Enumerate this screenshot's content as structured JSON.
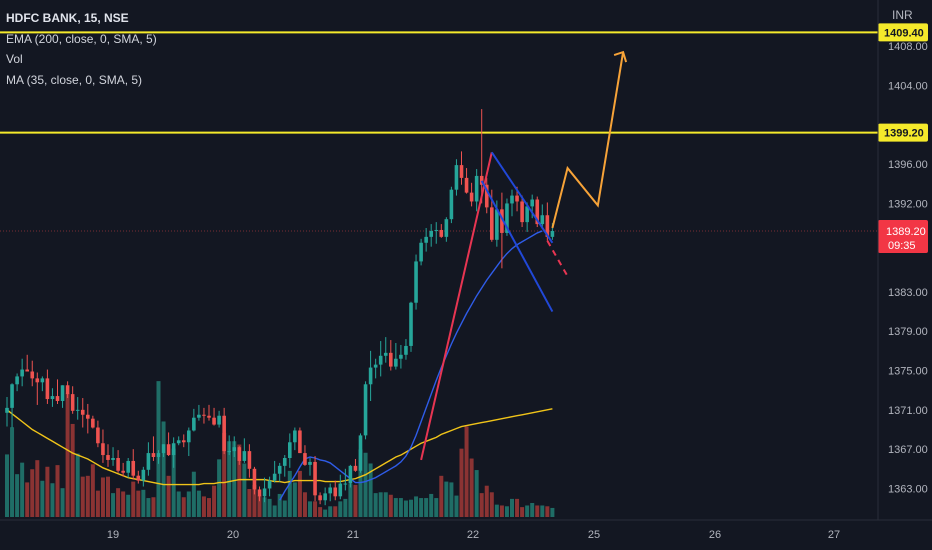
{
  "legend": {
    "title": "HDFC BANK, 15, NSE",
    "ema": "EMA (200, close, 0, SMA, 5)",
    "vol": "Vol",
    "ma": "MA (35, close, 0, SMA, 5)"
  },
  "currency": "INR",
  "price_box": {
    "price": "1389.20",
    "countdown": "09:35"
  },
  "colors": {
    "background": "#131722",
    "up": "#26a69a",
    "down": "#ef5350",
    "volume_up": "#1f6d66",
    "volume_down": "#8b3333",
    "ema": "#f0c419",
    "ma": "#2f5ce8",
    "level_line": "#f5ea2b",
    "projection": "#f7a338",
    "channel": "#2148d8",
    "flag_pole": "#e83552",
    "axis_text": "#b2b5be"
  },
  "chart_data": {
    "type": "candlestick",
    "symbol": "HDFC BANK",
    "interval": "15",
    "exchange": "NSE",
    "y_axis": {
      "ticks": [
        1363.0,
        1367.0,
        1371.0,
        1375.0,
        1379.0,
        1383.0,
        1392.0,
        1396.0,
        1404.0,
        1408.0
      ],
      "range": [
        1360.3,
        1412.7
      ]
    },
    "x_axis": {
      "ticks": [
        "19",
        "20",
        "21",
        "22",
        "25",
        "26",
        "27"
      ]
    },
    "horizontal_levels": [
      {
        "price": 1409.4,
        "label": "1409.40"
      },
      {
        "price": 1399.2,
        "label": "1399.20"
      }
    ],
    "last_price": 1389.2,
    "candles": [
      [
        1370.7,
        1372.3,
        1369.3,
        1371.2
      ],
      [
        1371.2,
        1373.7,
        1369.2,
        1373.6
      ],
      [
        1373.6,
        1374.7,
        1372.9,
        1374.4
      ],
      [
        1374.4,
        1376.2,
        1373.4,
        1375.1
      ],
      [
        1375.1,
        1376.6,
        1374.9,
        1374.9
      ],
      [
        1374.9,
        1376.0,
        1373.4,
        1374.2
      ],
      [
        1374.2,
        1374.8,
        1371.5,
        1373.8
      ],
      [
        1373.8,
        1374.4,
        1372.9,
        1374.2
      ],
      [
        1374.2,
        1375.1,
        1371.6,
        1372.1
      ],
      [
        1372.1,
        1373.2,
        1371.3,
        1372.4
      ],
      [
        1372.4,
        1374.1,
        1371.6,
        1371.9
      ],
      [
        1371.9,
        1373.5,
        1371.2,
        1373.5
      ],
      [
        1373.5,
        1373.9,
        1372.2,
        1372.6
      ],
      [
        1372.6,
        1373.4,
        1370.6,
        1370.9
      ],
      [
        1370.9,
        1372.3,
        1370.0,
        1371.0
      ],
      [
        1371.0,
        1372.2,
        1369.2,
        1370.5
      ],
      [
        1370.5,
        1371.6,
        1368.6,
        1370.1
      ],
      [
        1370.1,
        1370.4,
        1369.1,
        1369.2
      ],
      [
        1369.2,
        1369.9,
        1367.2,
        1367.6
      ],
      [
        1367.6,
        1369.0,
        1365.6,
        1366.4
      ],
      [
        1366.4,
        1367.5,
        1365.2,
        1365.9
      ],
      [
        1365.9,
        1367.2,
        1365.3,
        1366.1
      ],
      [
        1366.1,
        1366.9,
        1364.6,
        1364.8
      ],
      [
        1364.8,
        1365.6,
        1364.2,
        1364.6
      ],
      [
        1364.6,
        1366.1,
        1364.1,
        1365.8
      ],
      [
        1365.8,
        1367.0,
        1363.9,
        1364.3
      ],
      [
        1364.3,
        1364.8,
        1363.5,
        1363.8
      ],
      [
        1363.8,
        1365.2,
        1363.2,
        1364.9
      ],
      [
        1364.9,
        1367.7,
        1364.3,
        1366.6
      ],
      [
        1366.6,
        1368.3,
        1365.8,
        1366.2
      ],
      [
        1366.2,
        1366.9,
        1365.5,
        1366.6
      ],
      [
        1366.6,
        1367.5,
        1366.2,
        1367.5
      ],
      [
        1367.5,
        1368.7,
        1366.3,
        1366.4
      ],
      [
        1366.4,
        1368.2,
        1365.1,
        1367.6
      ],
      [
        1367.6,
        1368.3,
        1367.4,
        1367.9
      ],
      [
        1367.9,
        1368.5,
        1367.2,
        1367.7
      ],
      [
        1367.7,
        1369.2,
        1366.3,
        1368.9
      ],
      [
        1368.9,
        1371.1,
        1368.8,
        1370.2
      ],
      [
        1370.2,
        1371.5,
        1369.9,
        1370.5
      ],
      [
        1370.5,
        1371.2,
        1369.6,
        1370.4
      ],
      [
        1370.4,
        1371.5,
        1369.9,
        1370.2
      ],
      [
        1370.2,
        1371.2,
        1369.4,
        1369.5
      ],
      [
        1369.5,
        1370.9,
        1369.2,
        1370.4
      ],
      [
        1370.4,
        1371.2,
        1366.5,
        1366.8
      ],
      [
        1366.8,
        1368.4,
        1366.4,
        1366.8
      ],
      [
        1366.8,
        1368.3,
        1366.2,
        1367.2
      ],
      [
        1367.2,
        1367.3,
        1365.4,
        1365.8
      ],
      [
        1365.8,
        1368.1,
        1365.6,
        1366.8
      ],
      [
        1366.8,
        1367.5,
        1364.1,
        1365.0
      ],
      [
        1365.0,
        1365.2,
        1362.4,
        1362.9
      ],
      [
        1362.9,
        1363.2,
        1361.7,
        1362.2
      ],
      [
        1362.2,
        1364.1,
        1361.6,
        1363.0
      ],
      [
        1363.0,
        1364.2,
        1362.2,
        1363.8
      ],
      [
        1363.8,
        1365.8,
        1363.6,
        1364.5
      ],
      [
        1364.5,
        1365.6,
        1363.7,
        1365.3
      ],
      [
        1365.3,
        1366.4,
        1364.2,
        1366.1
      ],
      [
        1366.1,
        1368.6,
        1365.1,
        1367.7
      ],
      [
        1367.7,
        1369.2,
        1366.9,
        1368.9
      ],
      [
        1368.9,
        1369.2,
        1366.6,
        1366.6
      ],
      [
        1366.6,
        1367.4,
        1365.3,
        1365.4
      ],
      [
        1365.4,
        1366.1,
        1364.3,
        1365.7
      ],
      [
        1365.7,
        1366.3,
        1361.7,
        1362.3
      ],
      [
        1362.3,
        1362.6,
        1361.4,
        1361.8
      ],
      [
        1361.8,
        1363.1,
        1361.3,
        1362.5
      ],
      [
        1362.5,
        1363.5,
        1361.7,
        1363.1
      ],
      [
        1363.1,
        1363.8,
        1361.8,
        1362.2
      ],
      [
        1362.2,
        1364.4,
        1361.9,
        1363.5
      ],
      [
        1363.5,
        1365.0,
        1362.8,
        1363.5
      ],
      [
        1363.5,
        1365.4,
        1363.1,
        1365.3
      ],
      [
        1365.3,
        1366.0,
        1364.7,
        1364.8
      ],
      [
        1364.8,
        1368.6,
        1364.6,
        1368.4
      ],
      [
        1368.4,
        1373.9,
        1368.0,
        1373.6
      ],
      [
        1373.6,
        1377.0,
        1371.9,
        1375.3
      ],
      [
        1375.3,
        1376.2,
        1374.2,
        1375.6
      ],
      [
        1375.6,
        1378.0,
        1374.4,
        1376.5
      ],
      [
        1376.5,
        1378.4,
        1375.8,
        1376.8
      ],
      [
        1376.8,
        1378.1,
        1375.0,
        1375.4
      ],
      [
        1375.4,
        1377.8,
        1375.1,
        1376.2
      ],
      [
        1376.2,
        1377.6,
        1375.2,
        1376.6
      ],
      [
        1376.6,
        1378.2,
        1376.1,
        1377.5
      ],
      [
        1377.5,
        1382.0,
        1376.9,
        1381.9
      ],
      [
        1381.9,
        1386.8,
        1381.2,
        1386.1
      ],
      [
        1386.1,
        1388.4,
        1385.7,
        1388.0
      ],
      [
        1388.0,
        1389.5,
        1387.1,
        1388.6
      ],
      [
        1388.6,
        1389.9,
        1387.6,
        1389.2
      ],
      [
        1389.2,
        1390.1,
        1387.9,
        1389.3
      ],
      [
        1389.3,
        1389.9,
        1388.5,
        1388.6
      ],
      [
        1388.6,
        1390.6,
        1388.1,
        1390.4
      ],
      [
        1390.4,
        1393.7,
        1390.0,
        1393.4
      ],
      [
        1393.4,
        1396.5,
        1392.8,
        1395.9
      ],
      [
        1395.9,
        1397.3,
        1393.9,
        1394.6
      ],
      [
        1394.6,
        1395.6,
        1393.0,
        1393.1
      ],
      [
        1393.1,
        1394.1,
        1391.7,
        1392.2
      ],
      [
        1392.2,
        1395.5,
        1391.2,
        1394.8
      ],
      [
        1394.8,
        1401.6,
        1392.0,
        1393.9
      ],
      [
        1393.9,
        1394.6,
        1391.0,
        1391.6
      ],
      [
        1391.6,
        1393.4,
        1388.1,
        1388.3
      ],
      [
        1388.3,
        1392.3,
        1387.6,
        1391.4
      ],
      [
        1391.4,
        1393.1,
        1385.4,
        1389.0
      ],
      [
        1389.0,
        1392.5,
        1388.7,
        1392.0
      ],
      [
        1392.0,
        1393.4,
        1390.7,
        1392.8
      ],
      [
        1392.8,
        1393.7,
        1391.2,
        1392.2
      ],
      [
        1392.2,
        1392.8,
        1389.6,
        1390.1
      ],
      [
        1390.1,
        1392.1,
        1389.1,
        1391.7
      ],
      [
        1391.7,
        1392.9,
        1390.5,
        1392.4
      ],
      [
        1392.4,
        1392.7,
        1389.6,
        1389.9
      ],
      [
        1389.9,
        1391.9,
        1389.4,
        1390.8
      ],
      [
        1390.8,
        1392.1,
        1388.2,
        1388.6
      ],
      [
        1388.6,
        1390.0,
        1388.3,
        1389.2
      ]
    ],
    "volume": [
      760,
      1090,
      520,
      660,
      420,
      580,
      690,
      440,
      610,
      410,
      630,
      350,
      1500,
      1130,
      770,
      490,
      500,
      640,
      320,
      480,
      490,
      290,
      350,
      310,
      270,
      430,
      320,
      330,
      230,
      240,
      1650,
      1160,
      500,
      830,
      310,
      240,
      310,
      550,
      320,
      250,
      230,
      380,
      700,
      1020,
      920,
      920,
      880,
      650,
      340,
      390,
      260,
      240,
      220,
      140,
      280,
      200,
      560,
      420,
      560,
      300,
      190,
      190,
      120,
      90,
      130,
      130,
      190,
      220,
      400,
      390,
      820,
      780,
      650,
      290,
      300,
      300,
      270,
      230,
      230,
      200,
      210,
      250,
      230,
      230,
      280,
      230,
      500,
      430,
      420,
      260,
      830,
      1100,
      710,
      570,
      290,
      380,
      300,
      150,
      140,
      130,
      220,
      220,
      120,
      140,
      170,
      140,
      140,
      130,
      110
    ],
    "ema_200": [
      1371.0,
      1370.6,
      1370.2,
      1369.8,
      1369.4,
      1369.0,
      1368.7,
      1368.4,
      1368.1,
      1367.8,
      1367.5,
      1367.2,
      1366.9,
      1366.6,
      1366.4,
      1366.2,
      1366.0,
      1365.7,
      1365.4,
      1365.1,
      1364.9,
      1364.7,
      1364.5,
      1364.3,
      1364.1,
      1364.0,
      1363.9,
      1363.8,
      1363.7,
      1363.6,
      1363.5,
      1363.4,
      1363.4,
      1363.4,
      1363.4,
      1363.4,
      1363.4,
      1363.4,
      1363.4,
      1363.5,
      1363.5,
      1363.5,
      1363.6,
      1363.6,
      1363.7,
      1363.8,
      1363.9,
      1363.9,
      1363.9,
      1363.9,
      1363.9,
      1363.9,
      1363.8,
      1363.7,
      1363.7,
      1363.6,
      1363.7,
      1363.8,
      1363.8,
      1363.8,
      1363.8,
      1363.8,
      1363.8,
      1363.7,
      1363.7,
      1363.7,
      1363.7,
      1363.8,
      1363.9,
      1364.0,
      1364.2,
      1364.4,
      1364.7,
      1365.0,
      1365.3,
      1365.6,
      1365.9,
      1366.2,
      1366.4,
      1366.7,
      1367.0,
      1367.3,
      1367.6,
      1367.8,
      1368.0,
      1368.2,
      1368.5,
      1368.7,
      1368.9,
      1369.1,
      1369.3,
      1369.4,
      1369.5,
      1369.6,
      1369.7,
      1369.8,
      1369.9,
      1370.0,
      1370.1,
      1370.2,
      1370.3,
      1370.4,
      1370.5,
      1370.6,
      1370.7,
      1370.8,
      1370.9,
      1371.0,
      1371.1
    ],
    "ma_35": [
      null,
      null,
      null,
      null,
      null,
      null,
      null,
      null,
      null,
      null,
      null,
      null,
      null,
      null,
      null,
      null,
      null,
      null,
      null,
      null,
      null,
      null,
      null,
      null,
      null,
      null,
      null,
      null,
      null,
      null,
      null,
      null,
      null,
      null,
      null,
      null,
      null,
      null,
      null,
      null,
      null,
      null,
      null,
      null,
      null,
      null,
      null,
      null,
      null,
      null,
      null,
      null,
      null,
      null,
      1361.8,
      1362.7,
      1363.5,
      1364.3,
      1365.2,
      1366.0,
      1366.2,
      1366.1,
      1365.9,
      1365.8,
      1365.6,
      1365.2,
      1364.8,
      1364.4,
      1364.0,
      1363.6,
      1363.6,
      1363.7,
      1363.9,
      1364.1,
      1364.4,
      1364.7,
      1365.0,
      1365.3,
      1365.7,
      1366.3,
      1367.2,
      1368.4,
      1369.8,
      1371.2,
      1372.6,
      1374.0,
      1375.3,
      1376.5,
      1377.7,
      1378.8,
      1379.8,
      1380.8,
      1381.7,
      1382.6,
      1383.4,
      1384.2,
      1384.9,
      1385.6,
      1386.3,
      1386.9,
      1387.4,
      1387.8,
      1388.1,
      1388.4,
      1388.7,
      1389.0,
      1389.2
    ],
    "drawings": {
      "flag_pole": [
        [
          0,
          1365.9
        ],
        [
          14,
          1397.2
        ]
      ],
      "channel_upper": [
        [
          14,
          1397.2
        ],
        [
          26,
          1388.0
        ]
      ],
      "channel_lower": [
        [
          12,
          1394.3
        ],
        [
          26,
          1381.0
        ]
      ],
      "dashed_extension": [
        [
          2,
          1388.2
        ],
        [
          6,
          1384.6
        ]
      ],
      "projection": [
        [
          17,
          1389.5
        ],
        [
          20,
          1395.6
        ],
        [
          26,
          1391.8
        ],
        [
          31,
          1407.4
        ]
      ]
    }
  }
}
